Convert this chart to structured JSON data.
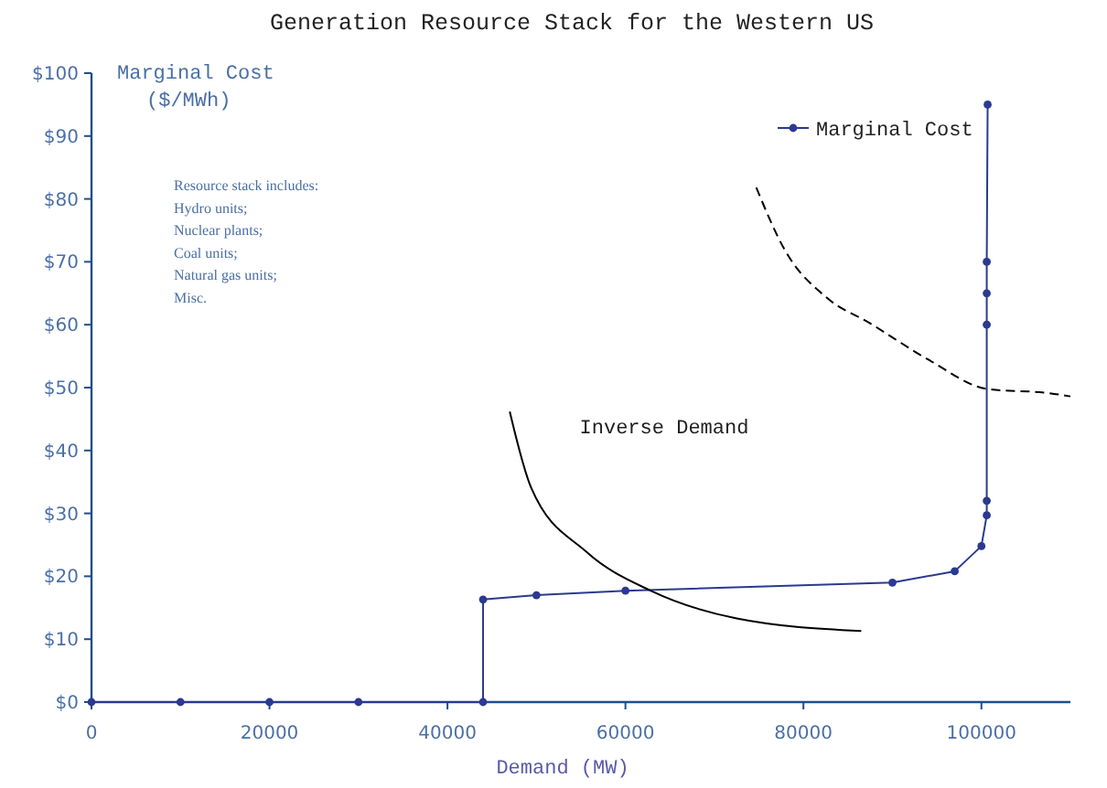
{
  "chart_data": {
    "type": "line",
    "title": "Generation Resource Stack for the Western US",
    "xlabel": "Demand (MW)",
    "ylabel": "Marginal Cost\n($/MWh)",
    "xlim": [
      0,
      110000
    ],
    "xticks": [
      0,
      20000,
      40000,
      60000,
      80000,
      100000
    ],
    "ylim": [
      0,
      100
    ],
    "yticks": [
      {
        "value": 0,
        "label": "$0"
      },
      {
        "value": 10,
        "label": "$10"
      },
      {
        "value": 20,
        "label": "$20"
      },
      {
        "value": 30,
        "label": "$30"
      },
      {
        "value": 40,
        "label": "$40"
      },
      {
        "value": 50,
        "label": "$50"
      },
      {
        "value": 60,
        "label": "$60"
      },
      {
        "value": 70,
        "label": "$70"
      },
      {
        "value": 80,
        "label": "$80"
      },
      {
        "value": 90,
        "label": "$90"
      },
      {
        "value": 100,
        "label": "$100"
      }
    ],
    "grid": false,
    "legend": "top right",
    "series": [
      {
        "name": "Marginal Cost",
        "color": "#2b3990",
        "marker": "circle",
        "line_style": "solid",
        "x": [
          0,
          10000,
          20000,
          30000,
          44000,
          44000,
          50000,
          60000,
          90000,
          97000,
          100000,
          100600,
          100600,
          100600,
          100600,
          100600,
          100700
        ],
        "values": [
          0,
          0,
          0,
          0,
          0,
          16.3,
          17,
          17.7,
          19,
          20.8,
          24.8,
          29.7,
          32,
          60,
          65,
          70,
          95
        ]
      },
      {
        "color": "#000000",
        "marker": "none",
        "line_style": "solid",
        "x": [
          47000,
          49400,
          55600,
          63000,
          72500,
          86500
        ],
        "values": [
          46.2,
          34.1,
          23.9,
          17.6,
          13.3,
          11.3
        ]
      },
      {
        "color": "#000000",
        "marker": "none",
        "line_style": "dashed",
        "x": [
          74700,
          77900,
          82700,
          87400,
          94100,
          100600,
          107700,
          110000
        ],
        "values": [
          81.8,
          71.9,
          64.2,
          60.3,
          54.4,
          49.8,
          49.1,
          48.6
        ]
      }
    ],
    "annotations": [
      "Resource stack includes:",
      "Hydro units;",
      "Nuclear plants;",
      "Coal units;",
      "Natural gas units;",
      "Misc.",
      "Inverse Demand"
    ]
  }
}
